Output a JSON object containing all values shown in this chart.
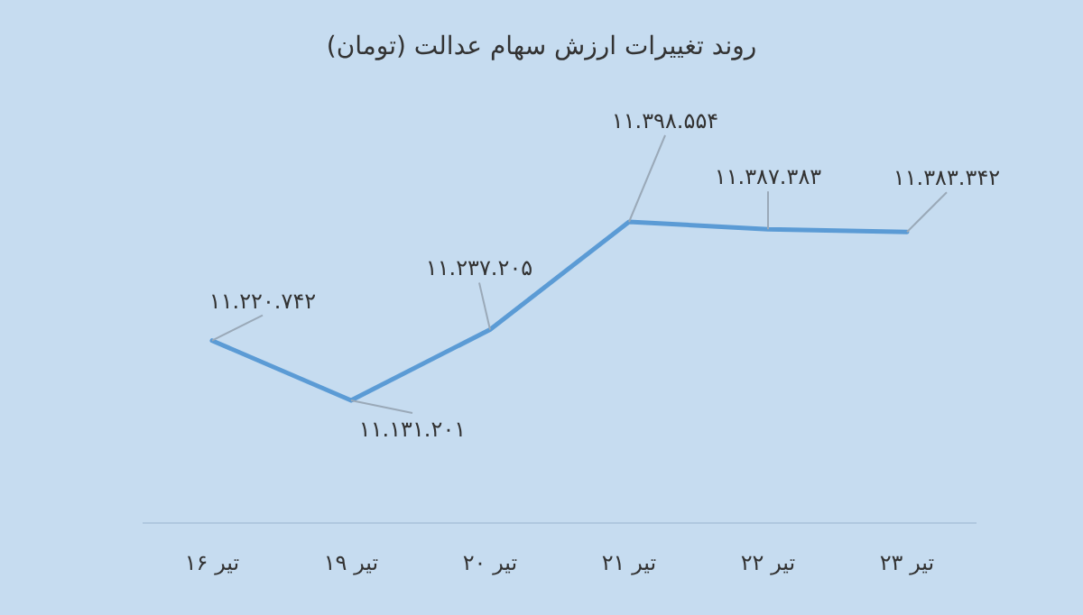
{
  "chart_data": {
    "type": "line",
    "title": "روند تغییرات ارزش سهام عدالت (تومان)",
    "categories": [
      "۱۶ تیر",
      "۱۹ تیر",
      "۲۰ تیر",
      "۲۱ تیر",
      "۲۲ تیر",
      "۲۳ تیر"
    ],
    "series": [
      {
        "color": "#5b9bd5",
        "values": [
          11220742,
          11131201,
          11237205,
          11398554,
          11387383,
          11383342
        ],
        "value_labels": [
          "۱۱.۲۲۰.۷۴۲",
          "۱۱.۱۳۱.۲۰۱",
          "۱۱.۲۳۷.۲۰۵",
          "۱۱.۳۹۸.۵۵۴",
          "۱۱.۳۸۷.۳۸۳",
          "۱۱.۳۸۳.۳۴۲"
        ]
      }
    ],
    "marker": "none",
    "line_style": "solid"
  }
}
